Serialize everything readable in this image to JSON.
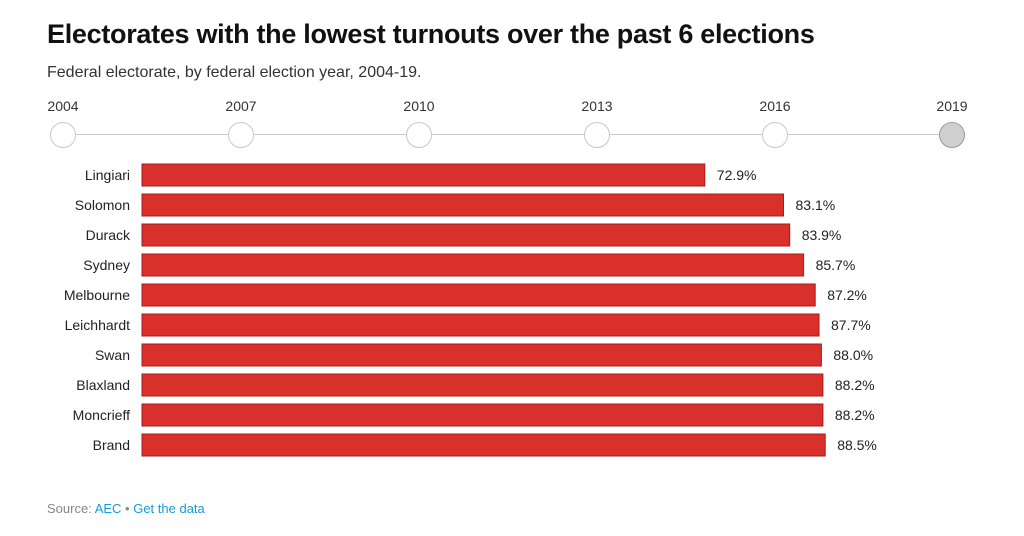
{
  "header": {
    "title": "Electorates with the lowest turnouts over the past 6 elections",
    "subtitle": "Federal electorate, by federal election year, 2004-19."
  },
  "timeline": {
    "years": [
      "2004",
      "2007",
      "2010",
      "2013",
      "2016",
      "2019"
    ],
    "selected": "2019"
  },
  "colors": {
    "bar_fill": "#d9302c",
    "bar_edge": "#a51d1b",
    "link": "#1a9ad6"
  },
  "chart_data": {
    "type": "bar",
    "orientation": "horizontal",
    "title": "Electorates with the lowest turnouts over the past 6 elections",
    "subtitle": "Federal electorate, by federal election year, 2004-19.",
    "categories": [
      "Lingiari",
      "Solomon",
      "Durack",
      "Sydney",
      "Melbourne",
      "Leichhardt",
      "Swan",
      "Blaxland",
      "Moncrieff",
      "Brand"
    ],
    "values": [
      72.9,
      83.1,
      83.9,
      85.7,
      87.2,
      87.7,
      88.0,
      88.2,
      88.2,
      88.5
    ],
    "value_labels": [
      "72.9%",
      "83.1%",
      "83.9%",
      "85.7%",
      "87.2%",
      "87.7%",
      "88.0%",
      "88.2%",
      "88.2%",
      "88.5%"
    ],
    "xlim": [
      0,
      100
    ],
    "grid": false,
    "data_labels": true
  },
  "footer": {
    "source_prefix": "Source: ",
    "source_link": "AEC",
    "separator": " • ",
    "data_link": "Get the data"
  }
}
